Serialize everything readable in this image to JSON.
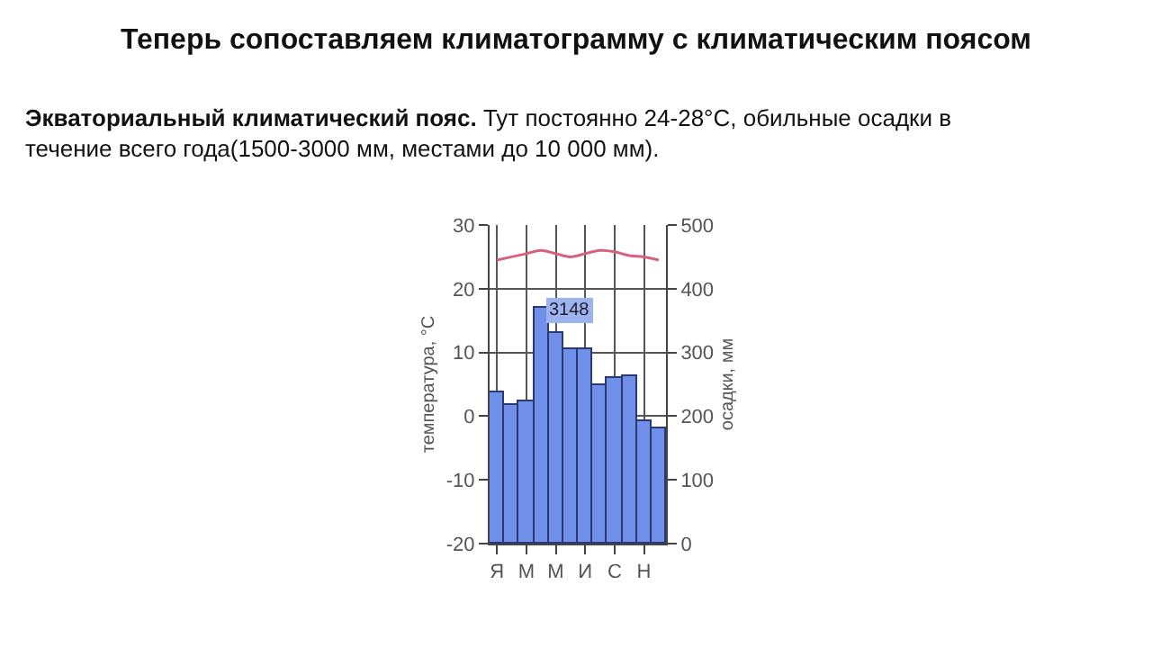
{
  "chart_data": {
    "type": "bar",
    "title": "Теперь сопоставляем климатограмму с климатическим поясом",
    "subtitle": "Экваториальный климатический пояс. Тут постоянно 24-28°С, обильные осадки в течение всего года(1500-3000 мм, местами до 10 000 мм).",
    "ylabel": "температура, °С",
    "y2label": "осадки, мм",
    "categories": [
      "Я",
      null,
      "М",
      null,
      "М",
      null,
      "И",
      null,
      "С",
      null,
      "Н",
      null
    ],
    "series": [
      {
        "axis": "y2",
        "color": "#6f8fe8",
        "values": [
          238,
          218,
          223,
          370,
          330,
          305,
          305,
          250,
          260,
          263,
          192,
          180
        ]
      },
      {
        "type": "line",
        "axis": "y",
        "color": "#d9607a",
        "values": [
          24.5,
          25,
          25.5,
          26,
          25.5,
          25,
          25.5,
          26,
          25.8,
          25.2,
          25,
          24.5
        ]
      }
    ],
    "annotations": [
      "3148"
    ],
    "ylim": [
      -20,
      30
    ],
    "yticks": [
      -20,
      -10,
      0,
      10,
      20,
      30
    ],
    "y2lim": [
      0,
      500
    ],
    "y2ticks": [
      0,
      100,
      200,
      300,
      400,
      500
    ],
    "grid": true,
    "marker": "none",
    "line_style": "solid"
  }
}
